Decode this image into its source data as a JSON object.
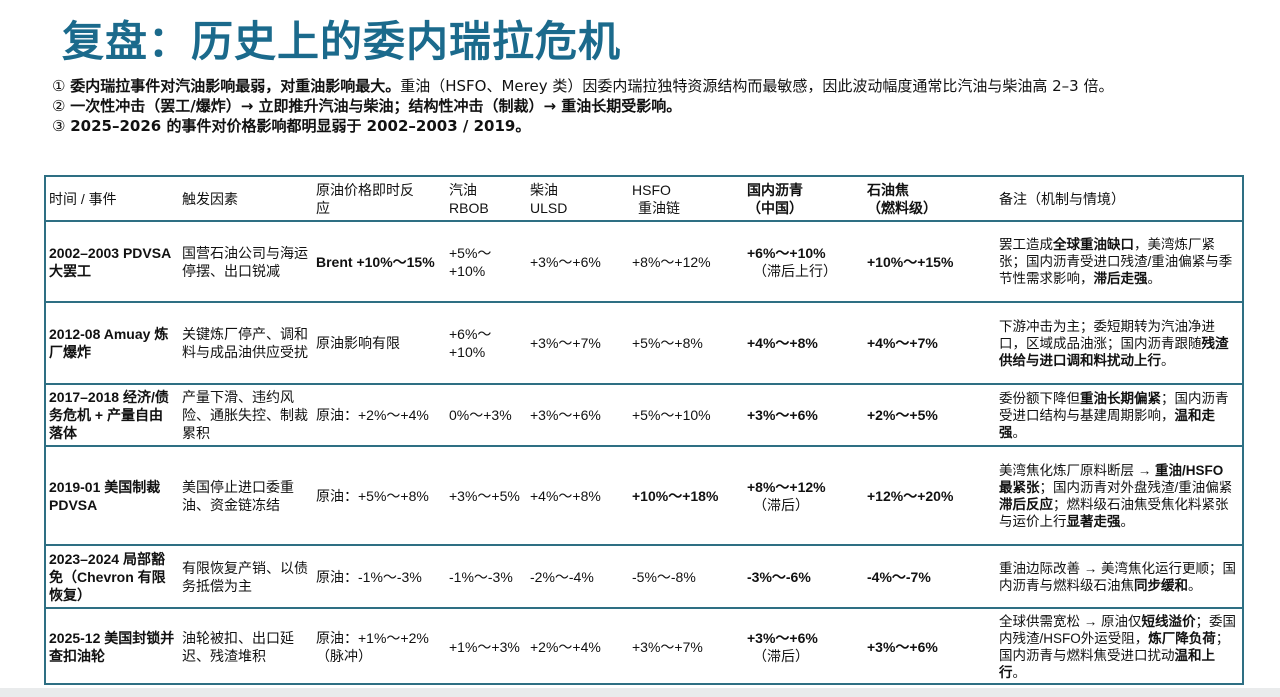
{
  "title": "复盘：历史上的委内瑞拉危机",
  "points": [
    {
      "num": "①",
      "bold": "委内瑞拉事件对汽油影响最弱，对重油影响最大。",
      "rest": "重油（HSFO、Merey 类）因委内瑞拉独特资源结构而最敏感，因此波动幅度通常比汽油与柴油高 2–3 倍。"
    },
    {
      "num": "②",
      "bold": "一次性冲击（罢工/爆炸）→ 立即推升汽油与柴油；结构性冲击（制裁）→ 重油长期受影响。",
      "rest": ""
    },
    {
      "num": "③",
      "bold": "2025–2026 的事件对价格影响都明显弱于 2002–2003 / 2019。",
      "rest": ""
    }
  ],
  "table": {
    "headers": [
      {
        "line1": "时间 / 事件",
        "line2": ""
      },
      {
        "line1": "触发因素",
        "line2": ""
      },
      {
        "line1": "原油价格即时反",
        "line2": "应"
      },
      {
        "line1": "汽油",
        "line2": "RBOB"
      },
      {
        "line1": "柴油",
        "line2": "ULSD"
      },
      {
        "line1": "HSFO",
        "line2": " 重油链"
      },
      {
        "line1": "国内沥青",
        "line2": "（中国）"
      },
      {
        "line1": "石油焦",
        "line2": "（燃料级）"
      },
      {
        "line1": "备注（机制与情境）",
        "line2": ""
      }
    ],
    "rows": [
      {
        "event": "2002–2003 PDVSA 大罢工",
        "trigger": "国营石油公司与海运停摆、出口锐减",
        "crude": "Brent +10%～15%",
        "rbob": "+5%～+10%",
        "ulsd": "+3%～+6%",
        "hsfo": "+8%～+12%",
        "asphalt": "+6%～+10%",
        "asphalt_note": "（滞后上行）",
        "petcoke": "+10%～+15%",
        "note_parts": [
          [
            "罢工造成",
            false
          ],
          [
            "全球重油缺口",
            true
          ],
          [
            "，美湾炼厂紧张；国内沥青受进口残渣/重油偏紧与季节性需求影响，",
            false
          ],
          [
            "滞后走强",
            true
          ],
          [
            "。",
            false
          ]
        ]
      },
      {
        "event": "2012-08 Amuay 炼厂爆炸",
        "trigger": "关键炼厂停产、调和料与成品油供应受扰",
        "crude": "原油影响有限",
        "rbob": "+6%～+10%",
        "ulsd": "+3%～+7%",
        "hsfo": "+5%～+8%",
        "asphalt": "+4%～+8%",
        "asphalt_note": "",
        "petcoke": "+4%～+7%",
        "note_parts": [
          [
            "下游冲击为主；委短期转为汽油净进口，区域成品油涨；国内沥青跟随",
            false
          ],
          [
            "残渣供给与进口调和料扰",
            true
          ],
          [
            "动上行",
            true
          ],
          [
            "。",
            false
          ]
        ]
      },
      {
        "event": "2017–2018 经济/债务危机 + 产量自由落体",
        "trigger": "产量下滑、违约风险、通胀失控、制裁累积",
        "crude": "原油：+2%～+4%",
        "rbob": "0%～+3%",
        "ulsd": "+3%～+6%",
        "hsfo": "+5%～+10%",
        "asphalt": "+3%～+6%",
        "asphalt_note": "",
        "petcoke": "+2%～+5%",
        "note_parts": [
          [
            "委份额下降但",
            false
          ],
          [
            "重油长期偏紧",
            true
          ],
          [
            "；国内沥青受进口结构与基建周期影响，",
            false
          ],
          [
            "温和走强",
            true
          ],
          [
            "。",
            false
          ]
        ]
      },
      {
        "event": "2019-01 美国制裁 PDVSA",
        "trigger": "美国停止进口委重油、资金链冻结",
        "crude": "原油：+5%～+8%",
        "rbob": "+3%～+5%",
        "ulsd": "+4%～+8%",
        "hsfo": "+10%～+18%",
        "asphalt": "+8%～+12%",
        "asphalt_note": "（滞后）",
        "petcoke": "+12%～+20%",
        "note_parts": [
          [
            "美湾焦化炼厂原料断层 → ",
            false
          ],
          [
            "重油/HSFO 最紧张",
            true
          ],
          [
            "；国内沥青对外盘残渣/重油偏紧",
            false
          ],
          [
            "滞后反应",
            true
          ],
          [
            "；燃料级石油焦受焦化料紧张与运价上行",
            false
          ],
          [
            "显著走强",
            true
          ],
          [
            "。",
            false
          ]
        ]
      },
      {
        "event": "2023–2024 局部豁免（Chevron 有限恢复）",
        "trigger": "有限恢复产销、以债务抵偿为主",
        "crude": "原油：-1%～-3%",
        "rbob": "-1%～-3%",
        "ulsd": "-2%～-4%",
        "hsfo": "-5%～-8%",
        "asphalt": "-3%～-6%",
        "asphalt_note": "",
        "petcoke": "-4%～-7%",
        "note_parts": [
          [
            "重油边际改善 → 美湾焦化运行更顺；国内沥青与燃料级石油焦",
            false
          ],
          [
            "同步缓和",
            true
          ],
          [
            "。",
            false
          ]
        ]
      },
      {
        "event": "2025-12 美国封锁并查扣油轮",
        "trigger": "油轮被扣、出口延迟、残渣堆积",
        "crude": "原油：+1%～+2%（脉冲）",
        "rbob": "+1%～+3%",
        "ulsd": "+2%～+4%",
        "hsfo": "+3%～+7%",
        "asphalt": "+3%～+6%",
        "asphalt_note": "（滞后）",
        "petcoke": "+3%～+6%",
        "note_parts": [
          [
            "全球供需宽松 → 原油仅",
            false
          ],
          [
            "短线溢价",
            true
          ],
          [
            "；委国内残渣/HSFO外运受阻，",
            false
          ],
          [
            "炼厂降负荷",
            true
          ],
          [
            "；国内沥青与燃料焦受进口扰动",
            false
          ],
          [
            "温和上行",
            true
          ],
          [
            "。",
            false
          ]
        ]
      }
    ]
  },
  "colors": {
    "title": "#1b6a8c",
    "border": "#2e6f83"
  }
}
